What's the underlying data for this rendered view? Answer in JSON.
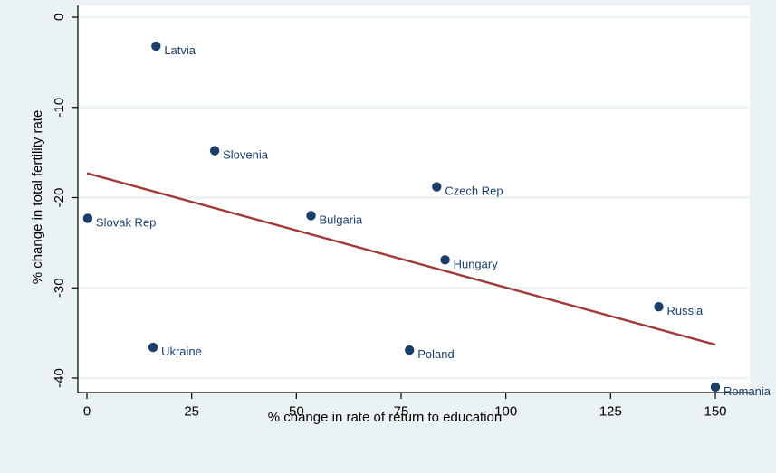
{
  "chart_data": {
    "type": "scatter",
    "xlabel": "% change in rate of return to education",
    "ylabel": "% change in total fertility rate",
    "xlim": [
      0,
      150
    ],
    "ylim": [
      -40,
      0
    ],
    "xticks": [
      "0",
      "25",
      "50",
      "75",
      "100",
      "125",
      "150"
    ],
    "yticks": [
      "0",
      "-10",
      "-20",
      "-30",
      "-40"
    ],
    "grid": true,
    "points": [
      {
        "label": "Latvia",
        "x": 16.5,
        "y": -3.2
      },
      {
        "label": "Slovenia",
        "x": 30.5,
        "y": -14.8
      },
      {
        "label": "Czech Rep",
        "x": 83.5,
        "y": -18.8
      },
      {
        "label": "Slovak Rep",
        "x": 0.2,
        "y": -22.3
      },
      {
        "label": "Bulgaria",
        "x": 53.5,
        "y": -22.0
      },
      {
        "label": "Hungary",
        "x": 85.5,
        "y": -26.9
      },
      {
        "label": "Russia",
        "x": 136.5,
        "y": -32.1
      },
      {
        "label": "Ukraine",
        "x": 15.8,
        "y": -36.6
      },
      {
        "label": "Poland",
        "x": 77.0,
        "y": -36.9
      },
      {
        "label": "Romania",
        "x": 150.0,
        "y": -41.0
      }
    ],
    "fit_line": {
      "x": [
        0,
        150
      ],
      "y": [
        -17.3,
        -36.3
      ]
    },
    "colors": {
      "points": "#1a3f6b",
      "fit_line": "#a03a3a",
      "background": "#eaf2f3"
    }
  }
}
